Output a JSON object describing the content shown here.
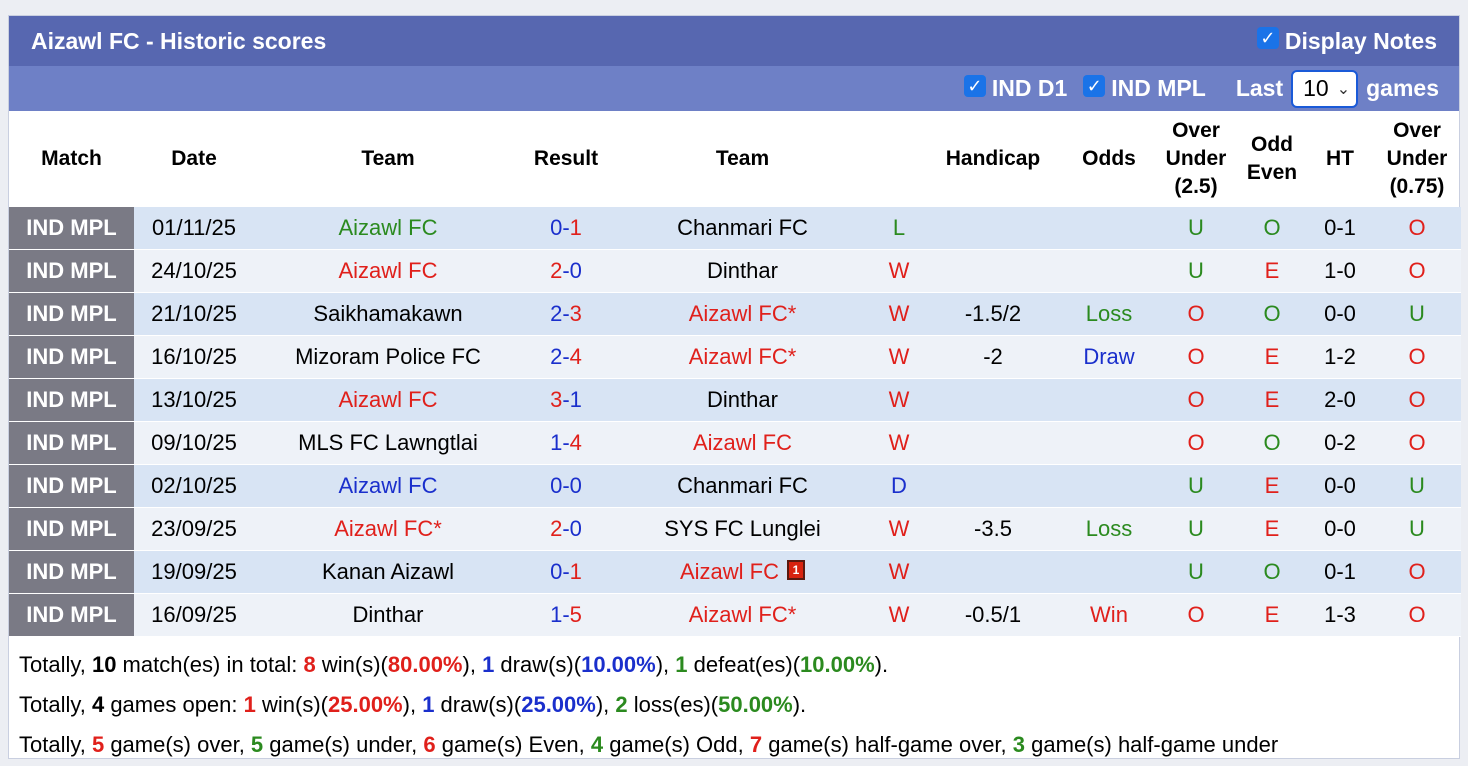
{
  "header": {
    "title": "Aizawl FC - Historic scores",
    "display_notes": "Display Notes"
  },
  "filters": {
    "ind_d1": "IND D1",
    "ind_mpl": "IND MPL",
    "last_label": "Last",
    "last_value": "10",
    "games_label": "games"
  },
  "columns": {
    "match": "Match",
    "date": "Date",
    "team_home": "Team",
    "result": "Result",
    "team_away": "Team",
    "handicap": "Handicap",
    "odds": "Odds",
    "ou25_a": "Over",
    "ou25_b": "Under",
    "ou25_c": "(2.5)",
    "oe_a": "Odd",
    "oe_b": "Even",
    "ht": "HT",
    "ou075_a": "Over",
    "ou075_b": "Under",
    "ou075_c": "(0.75)"
  },
  "rows": [
    {
      "league": "IND MPL",
      "date": "01/11/25",
      "home": "Aizawl FC",
      "home_color": "#2b8a1f",
      "hs": "0",
      "hs_color": "#1a2fcc",
      "dash": "-",
      "as": "1",
      "as_color": "#e0201b",
      "away": "Chanmari FC",
      "away_color": "#000000",
      "wl": "L",
      "wl_color": "#2b8a1f",
      "handicap": "",
      "odds": "",
      "odds_color": "#000000",
      "ou": "U",
      "ou_color": "#2b8a1f",
      "oe": "O",
      "oe_color": "#2b8a1f",
      "ht": "0-1",
      "ou2": "O",
      "ou2_color": "#e0201b",
      "card": false
    },
    {
      "league": "IND MPL",
      "date": "24/10/25",
      "home": "Aizawl FC",
      "home_color": "#e0201b",
      "hs": "2",
      "hs_color": "#e0201b",
      "dash": "-",
      "as": "0",
      "as_color": "#1a2fcc",
      "away": "Dinthar",
      "away_color": "#000000",
      "wl": "W",
      "wl_color": "#e0201b",
      "handicap": "",
      "odds": "",
      "odds_color": "#000000",
      "ou": "U",
      "ou_color": "#2b8a1f",
      "oe": "E",
      "oe_color": "#e0201b",
      "ht": "1-0",
      "ou2": "O",
      "ou2_color": "#e0201b",
      "card": false
    },
    {
      "league": "IND MPL",
      "date": "21/10/25",
      "home": "Saikhamakawn",
      "home_color": "#000000",
      "hs": "2",
      "hs_color": "#1a2fcc",
      "dash": "-",
      "as": "3",
      "as_color": "#e0201b",
      "away": "Aizawl FC*",
      "away_color": "#e0201b",
      "wl": "W",
      "wl_color": "#e0201b",
      "handicap": "-1.5/2",
      "odds": "Loss",
      "odds_color": "#2b8a1f",
      "ou": "O",
      "ou_color": "#e0201b",
      "oe": "O",
      "oe_color": "#2b8a1f",
      "ht": "0-0",
      "ou2": "U",
      "ou2_color": "#2b8a1f",
      "card": false
    },
    {
      "league": "IND MPL",
      "date": "16/10/25",
      "home": "Mizoram Police FC",
      "home_color": "#000000",
      "hs": "2",
      "hs_color": "#1a2fcc",
      "dash": "-",
      "as": "4",
      "as_color": "#e0201b",
      "away": "Aizawl FC*",
      "away_color": "#e0201b",
      "wl": "W",
      "wl_color": "#e0201b",
      "handicap": "-2",
      "odds": "Draw",
      "odds_color": "#1a2fcc",
      "ou": "O",
      "ou_color": "#e0201b",
      "oe": "E",
      "oe_color": "#e0201b",
      "ht": "1-2",
      "ou2": "O",
      "ou2_color": "#e0201b",
      "card": false
    },
    {
      "league": "IND MPL",
      "date": "13/10/25",
      "home": "Aizawl FC",
      "home_color": "#e0201b",
      "hs": "3",
      "hs_color": "#e0201b",
      "dash": "-",
      "as": "1",
      "as_color": "#1a2fcc",
      "away": "Dinthar",
      "away_color": "#000000",
      "wl": "W",
      "wl_color": "#e0201b",
      "handicap": "",
      "odds": "",
      "odds_color": "#000000",
      "ou": "O",
      "ou_color": "#e0201b",
      "oe": "E",
      "oe_color": "#e0201b",
      "ht": "2-0",
      "ou2": "O",
      "ou2_color": "#e0201b",
      "card": false
    },
    {
      "league": "IND MPL",
      "date": "09/10/25",
      "home": "MLS FC Lawngtlai",
      "home_color": "#000000",
      "hs": "1",
      "hs_color": "#1a2fcc",
      "dash": "-",
      "as": "4",
      "as_color": "#e0201b",
      "away": "Aizawl FC",
      "away_color": "#e0201b",
      "wl": "W",
      "wl_color": "#e0201b",
      "handicap": "",
      "odds": "",
      "odds_color": "#000000",
      "ou": "O",
      "ou_color": "#e0201b",
      "oe": "O",
      "oe_color": "#2b8a1f",
      "ht": "0-2",
      "ou2": "O",
      "ou2_color": "#e0201b",
      "card": false
    },
    {
      "league": "IND MPL",
      "date": "02/10/25",
      "home": "Aizawl FC",
      "home_color": "#1a2fcc",
      "hs": "0",
      "hs_color": "#1a2fcc",
      "dash": "-",
      "as": "0",
      "as_color": "#1a2fcc",
      "away": "Chanmari FC",
      "away_color": "#000000",
      "wl": "D",
      "wl_color": "#1a2fcc",
      "handicap": "",
      "odds": "",
      "odds_color": "#000000",
      "ou": "U",
      "ou_color": "#2b8a1f",
      "oe": "E",
      "oe_color": "#e0201b",
      "ht": "0-0",
      "ou2": "U",
      "ou2_color": "#2b8a1f",
      "card": false
    },
    {
      "league": "IND MPL",
      "date": "23/09/25",
      "home": "Aizawl FC*",
      "home_color": "#e0201b",
      "hs": "2",
      "hs_color": "#e0201b",
      "dash": "-",
      "as": "0",
      "as_color": "#1a2fcc",
      "away": "SYS FC Lunglei",
      "away_color": "#000000",
      "wl": "W",
      "wl_color": "#e0201b",
      "handicap": "-3.5",
      "odds": "Loss",
      "odds_color": "#2b8a1f",
      "ou": "U",
      "ou_color": "#2b8a1f",
      "oe": "E",
      "oe_color": "#e0201b",
      "ht": "0-0",
      "ou2": "U",
      "ou2_color": "#2b8a1f",
      "card": false
    },
    {
      "league": "IND MPL",
      "date": "19/09/25",
      "home": "Kanan Aizawl",
      "home_color": "#000000",
      "hs": "0",
      "hs_color": "#1a2fcc",
      "dash": "-",
      "as": "1",
      "as_color": "#e0201b",
      "away": "Aizawl FC",
      "away_color": "#e0201b",
      "wl": "W",
      "wl_color": "#e0201b",
      "handicap": "",
      "odds": "",
      "odds_color": "#000000",
      "ou": "U",
      "ou_color": "#2b8a1f",
      "oe": "O",
      "oe_color": "#2b8a1f",
      "ht": "0-1",
      "ou2": "O",
      "ou2_color": "#e0201b",
      "card": true,
      "card_text": "1"
    },
    {
      "league": "IND MPL",
      "date": "16/09/25",
      "home": "Dinthar",
      "home_color": "#000000",
      "hs": "1",
      "hs_color": "#1a2fcc",
      "dash": "-",
      "as": "5",
      "as_color": "#e0201b",
      "away": "Aizawl FC*",
      "away_color": "#e0201b",
      "wl": "W",
      "wl_color": "#e0201b",
      "handicap": "-0.5/1",
      "odds": "Win",
      "odds_color": "#e0201b",
      "ou": "O",
      "ou_color": "#e0201b",
      "oe": "E",
      "oe_color": "#e0201b",
      "ht": "1-3",
      "ou2": "O",
      "ou2_color": "#e0201b",
      "card": false
    }
  ],
  "summary": {
    "line1": [
      {
        "t": "Totally, ",
        "c": "#000000",
        "b": false
      },
      {
        "t": "10",
        "c": "#000000",
        "b": true
      },
      {
        "t": " match(es) in total: ",
        "c": "#000000",
        "b": false
      },
      {
        "t": "8",
        "c": "#e0201b",
        "b": true
      },
      {
        "t": " win(s)(",
        "c": "#000000",
        "b": false
      },
      {
        "t": "80.00%",
        "c": "#e0201b",
        "b": true
      },
      {
        "t": "), ",
        "c": "#000000",
        "b": false
      },
      {
        "t": "1",
        "c": "#1a2fcc",
        "b": true
      },
      {
        "t": " draw(s)(",
        "c": "#000000",
        "b": false
      },
      {
        "t": "10.00%",
        "c": "#1a2fcc",
        "b": true
      },
      {
        "t": "), ",
        "c": "#000000",
        "b": false
      },
      {
        "t": "1",
        "c": "#2b8a1f",
        "b": true
      },
      {
        "t": " defeat(es)(",
        "c": "#000000",
        "b": false
      },
      {
        "t": "10.00%",
        "c": "#2b8a1f",
        "b": true
      },
      {
        "t": ").",
        "c": "#000000",
        "b": false
      }
    ],
    "line2": [
      {
        "t": "Totally, ",
        "c": "#000000",
        "b": false
      },
      {
        "t": "4",
        "c": "#000000",
        "b": true
      },
      {
        "t": " games open: ",
        "c": "#000000",
        "b": false
      },
      {
        "t": "1",
        "c": "#e0201b",
        "b": true
      },
      {
        "t": " win(s)(",
        "c": "#000000",
        "b": false
      },
      {
        "t": "25.00%",
        "c": "#e0201b",
        "b": true
      },
      {
        "t": "), ",
        "c": "#000000",
        "b": false
      },
      {
        "t": "1",
        "c": "#1a2fcc",
        "b": true
      },
      {
        "t": " draw(s)(",
        "c": "#000000",
        "b": false
      },
      {
        "t": "25.00%",
        "c": "#1a2fcc",
        "b": true
      },
      {
        "t": "), ",
        "c": "#000000",
        "b": false
      },
      {
        "t": "2",
        "c": "#2b8a1f",
        "b": true
      },
      {
        "t": " loss(es)(",
        "c": "#000000",
        "b": false
      },
      {
        "t": "50.00%",
        "c": "#2b8a1f",
        "b": true
      },
      {
        "t": ").",
        "c": "#000000",
        "b": false
      }
    ],
    "line3": [
      {
        "t": "Totally, ",
        "c": "#000000",
        "b": false
      },
      {
        "t": "5",
        "c": "#e0201b",
        "b": true
      },
      {
        "t": " game(s) over, ",
        "c": "#000000",
        "b": false
      },
      {
        "t": "5",
        "c": "#2b8a1f",
        "b": true
      },
      {
        "t": " game(s) under, ",
        "c": "#000000",
        "b": false
      },
      {
        "t": "6",
        "c": "#e0201b",
        "b": true
      },
      {
        "t": " game(s) Even, ",
        "c": "#000000",
        "b": false
      },
      {
        "t": "4",
        "c": "#2b8a1f",
        "b": true
      },
      {
        "t": " game(s) Odd, ",
        "c": "#000000",
        "b": false
      },
      {
        "t": "7",
        "c": "#e0201b",
        "b": true
      },
      {
        "t": " game(s) half-game over, ",
        "c": "#000000",
        "b": false
      },
      {
        "t": "3",
        "c": "#2b8a1f",
        "b": true
      },
      {
        "t": " game(s) half-game under",
        "c": "#000000",
        "b": false
      }
    ]
  }
}
